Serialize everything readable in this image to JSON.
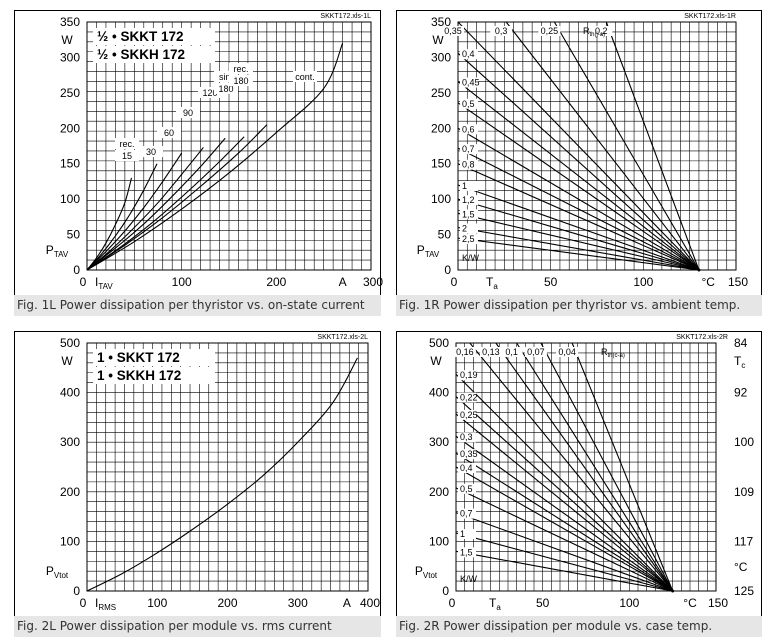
{
  "colors": {
    "line": "#000000",
    "caption_bg": "#e6e6e6",
    "caption_text": "#333333"
  },
  "chart_data": [
    {
      "id": "fig-1l",
      "type": "line",
      "file_tag": "SKKT172.xls-1L",
      "caption": "Fig. 1L Power dissipation per thyristor vs. on-state current",
      "title_lines": [
        "½ • SKKT 172",
        "½ • SKKH 172"
      ],
      "ylabel": "P",
      "ylabel_sub": "TAV",
      "yunit": "W",
      "xlabel": "I",
      "xlabel_sub": "TAV",
      "xunit": "A",
      "xlim": [
        0,
        300
      ],
      "ylim": [
        0,
        350
      ],
      "xticks": [
        "0",
        "100",
        "200",
        "300"
      ],
      "yticks": [
        "0",
        "50",
        "100",
        "150",
        "200",
        "250",
        "300",
        "350"
      ],
      "series": [
        {
          "name": "rec. 15",
          "label_lines": [
            "rec.",
            "15"
          ],
          "x": [
            0,
            10,
            20,
            30,
            40,
            47
          ],
          "y": [
            0,
            17,
            38,
            64,
            95,
            130
          ]
        },
        {
          "name": "30",
          "label_lines": [
            "30"
          ],
          "x": [
            0,
            15,
            30,
            45,
            60,
            74
          ],
          "y": [
            0,
            22,
            48,
            78,
            113,
            150
          ]
        },
        {
          "name": "60",
          "label_lines": [
            "60"
          ],
          "x": [
            0,
            20,
            40,
            60,
            80,
            100
          ],
          "y": [
            0,
            26,
            55,
            88,
            125,
            165
          ]
        },
        {
          "name": "90",
          "label_lines": [
            "90"
          ],
          "x": [
            0,
            25,
            50,
            75,
            100,
            123
          ],
          "y": [
            0,
            28,
            60,
            95,
            135,
            173
          ]
        },
        {
          "name": "120",
          "label_lines": [
            "120"
          ],
          "x": [
            0,
            30,
            60,
            90,
            120,
            146
          ],
          "y": [
            0,
            31,
            65,
            104,
            146,
            186
          ]
        },
        {
          "name": "sin. 180",
          "label_lines": [
            "sin.",
            "180"
          ],
          "x": [
            0,
            35,
            70,
            105,
            140,
            166
          ],
          "y": [
            0,
            32,
            68,
            109,
            153,
            188
          ]
        },
        {
          "name": "rec. 180",
          "label_lines": [
            "rec.",
            "180"
          ],
          "x": [
            0,
            40,
            80,
            120,
            160,
            190
          ],
          "y": [
            0,
            35,
            74,
            118,
            165,
            205
          ]
        },
        {
          "name": "cont.",
          "label_lines": [
            "cont."
          ],
          "x": [
            0,
            50,
            100,
            150,
            200,
            250,
            270
          ],
          "y": [
            0,
            40,
            86,
            137,
            194,
            256,
            320
          ]
        }
      ]
    },
    {
      "id": "fig-1r",
      "type": "line",
      "file_tag": "SKKT172.xls-1R",
      "caption": "Fig. 1R Power dissipation per thyristor vs. ambient temp.",
      "ylabel": "P",
      "ylabel_sub": "TAV",
      "yunit": "W",
      "xlabel": "T",
      "xlabel_sub": "a",
      "xunit": "°C",
      "xlim": [
        0,
        150
      ],
      "ylim": [
        0,
        350
      ],
      "xticks": [
        "0",
        "50",
        "100",
        "150"
      ],
      "yticks": [
        "0",
        "50",
        "100",
        "150",
        "200",
        "250",
        "300",
        "350"
      ],
      "rth_label": "R",
      "rth_label_sub": "th(j-a)",
      "rth_unit": "K/W",
      "convergence": [
        130,
        0
      ],
      "series": [
        {
          "name": "0.2",
          "label": "0,2",
          "top": true,
          "x": [
            80,
            130
          ],
          "y": [
            350,
            0
          ]
        },
        {
          "name": "0.25",
          "label": "0,25",
          "top": true,
          "x": [
            52,
            130
          ],
          "y": [
            350,
            0
          ]
        },
        {
          "name": "0.3",
          "label": "0,3",
          "top": true,
          "x": [
            26,
            130
          ],
          "y": [
            350,
            0
          ]
        },
        {
          "name": "0.35",
          "label": "0,35",
          "top": true,
          "x": [
            0,
            130
          ],
          "y": [
            350,
            0
          ]
        },
        {
          "name": "0.4",
          "label": "0,4",
          "x": [
            0,
            130
          ],
          "y": [
            306,
            0
          ]
        },
        {
          "name": "0.45",
          "label": "0,45",
          "x": [
            0,
            130
          ],
          "y": [
            266,
            0
          ]
        },
        {
          "name": "0.5",
          "label": "0,5",
          "x": [
            0,
            130
          ],
          "y": [
            236,
            0
          ]
        },
        {
          "name": "0.6",
          "label": "0,6",
          "x": [
            0,
            130
          ],
          "y": [
            200,
            0
          ]
        },
        {
          "name": "0.7",
          "label": "0,7",
          "x": [
            0,
            130
          ],
          "y": [
            172,
            0
          ]
        },
        {
          "name": "0.8",
          "label": "0,8",
          "x": [
            0,
            130
          ],
          "y": [
            150,
            0
          ]
        },
        {
          "name": "1",
          "label": "1",
          "x": [
            0,
            130
          ],
          "y": [
            120,
            0
          ]
        },
        {
          "name": "1.2",
          "label": "1,2",
          "x": [
            0,
            130
          ],
          "y": [
            100,
            0
          ]
        },
        {
          "name": "1.5",
          "label": "1,5",
          "x": [
            0,
            130
          ],
          "y": [
            80,
            0
          ]
        },
        {
          "name": "2",
          "label": "2",
          "x": [
            0,
            130
          ],
          "y": [
            60,
            0
          ]
        },
        {
          "name": "2.5",
          "label": "2,5",
          "x": [
            0,
            130
          ],
          "y": [
            45,
            0
          ]
        }
      ]
    },
    {
      "id": "fig-2l",
      "type": "line",
      "file_tag": "SKKT172.xls-2L",
      "caption": "Fig. 2L Power dissipation per module vs. rms current",
      "title_lines": [
        "1 • SKKT 172",
        "1 • SKKH 172"
      ],
      "ylabel": "P",
      "ylabel_sub": "Vtot",
      "yunit": "W",
      "xlabel": "I",
      "xlabel_sub": "RMS",
      "xunit": "A",
      "xlim": [
        0,
        400
      ],
      "ylim": [
        0,
        500
      ],
      "xticks": [
        "0",
        "100",
        "200",
        "300",
        "400"
      ],
      "yticks": [
        "0",
        "100",
        "200",
        "300",
        "400",
        "500"
      ],
      "series": [
        {
          "name": "module",
          "x": [
            0,
            50,
            100,
            150,
            200,
            250,
            300,
            350,
            385
          ],
          "y": [
            0,
            35,
            77,
            124,
            175,
            232,
            300,
            380,
            470
          ]
        }
      ]
    },
    {
      "id": "fig-2r",
      "type": "line",
      "file_tag": "SKKT172.xls-2R",
      "caption": "Fig. 2R Power dissipation per module vs. case temp.",
      "ylabel": "P",
      "ylabel_sub": "Vtot",
      "yunit": "W",
      "xlabel": "T",
      "xlabel_sub": "a",
      "xunit": "°C",
      "xlim": [
        0,
        150
      ],
      "ylim": [
        0,
        500
      ],
      "xticks": [
        "0",
        "50",
        "100",
        "150"
      ],
      "yticks": [
        "0",
        "100",
        "200",
        "300",
        "400",
        "500"
      ],
      "right_axis_label": "T",
      "right_axis_sub": "c",
      "right_axis_unit": "°C",
      "right_ticks": [
        {
          "label": "84",
          "at": 500
        },
        {
          "label": "92",
          "at": 400
        },
        {
          "label": "100",
          "at": 300
        },
        {
          "label": "109",
          "at": 200
        },
        {
          "label": "117",
          "at": 100
        },
        {
          "label": "125",
          "at": 0
        }
      ],
      "rth_label": "R",
      "rth_label_sub": "th(c-a)",
      "rth_unit": "K/W",
      "convergence": [
        125,
        0
      ],
      "series": [
        {
          "name": "0.04",
          "label": "0,04",
          "top": true,
          "x": [
            67,
            125
          ],
          "y": [
            500,
            0
          ]
        },
        {
          "name": "0.07",
          "label": "0,07",
          "top": true,
          "x": [
            49,
            125
          ],
          "y": [
            500,
            0
          ]
        },
        {
          "name": "0.1",
          "label": "0,1",
          "top": true,
          "x": [
            35,
            125
          ],
          "y": [
            500,
            0
          ]
        },
        {
          "name": "0.13",
          "label": "0,13",
          "top": true,
          "x": [
            23,
            125
          ],
          "y": [
            500,
            0
          ]
        },
        {
          "name": "0.16",
          "label": "0,16",
          "top": true,
          "x": [
            8,
            125
          ],
          "y": [
            500,
            0
          ]
        },
        {
          "name": "0.19",
          "label": "0,19",
          "x": [
            0,
            125
          ],
          "y": [
            437,
            0
          ]
        },
        {
          "name": "0.22",
          "label": "0,22",
          "x": [
            0,
            125
          ],
          "y": [
            392,
            0
          ]
        },
        {
          "name": "0.25",
          "label": "0,25",
          "x": [
            0,
            125
          ],
          "y": [
            357,
            0
          ]
        },
        {
          "name": "0.3",
          "label": "0,3",
          "x": [
            0,
            125
          ],
          "y": [
            312,
            0
          ]
        },
        {
          "name": "0.35",
          "label": "0,35",
          "x": [
            0,
            125
          ],
          "y": [
            278,
            0
          ]
        },
        {
          "name": "0.4",
          "label": "0,4",
          "x": [
            0,
            125
          ],
          "y": [
            250,
            0
          ]
        },
        {
          "name": "0.5",
          "label": "0,5",
          "x": [
            0,
            125
          ],
          "y": [
            208,
            0
          ]
        },
        {
          "name": "0.7",
          "label": "0,7",
          "x": [
            0,
            125
          ],
          "y": [
            158,
            0
          ]
        },
        {
          "name": "1",
          "label": "1",
          "x": [
            0,
            125
          ],
          "y": [
            117,
            0
          ]
        },
        {
          "name": "1.5",
          "label": "1,5",
          "x": [
            0,
            125
          ],
          "y": [
            80,
            0
          ]
        }
      ]
    }
  ]
}
